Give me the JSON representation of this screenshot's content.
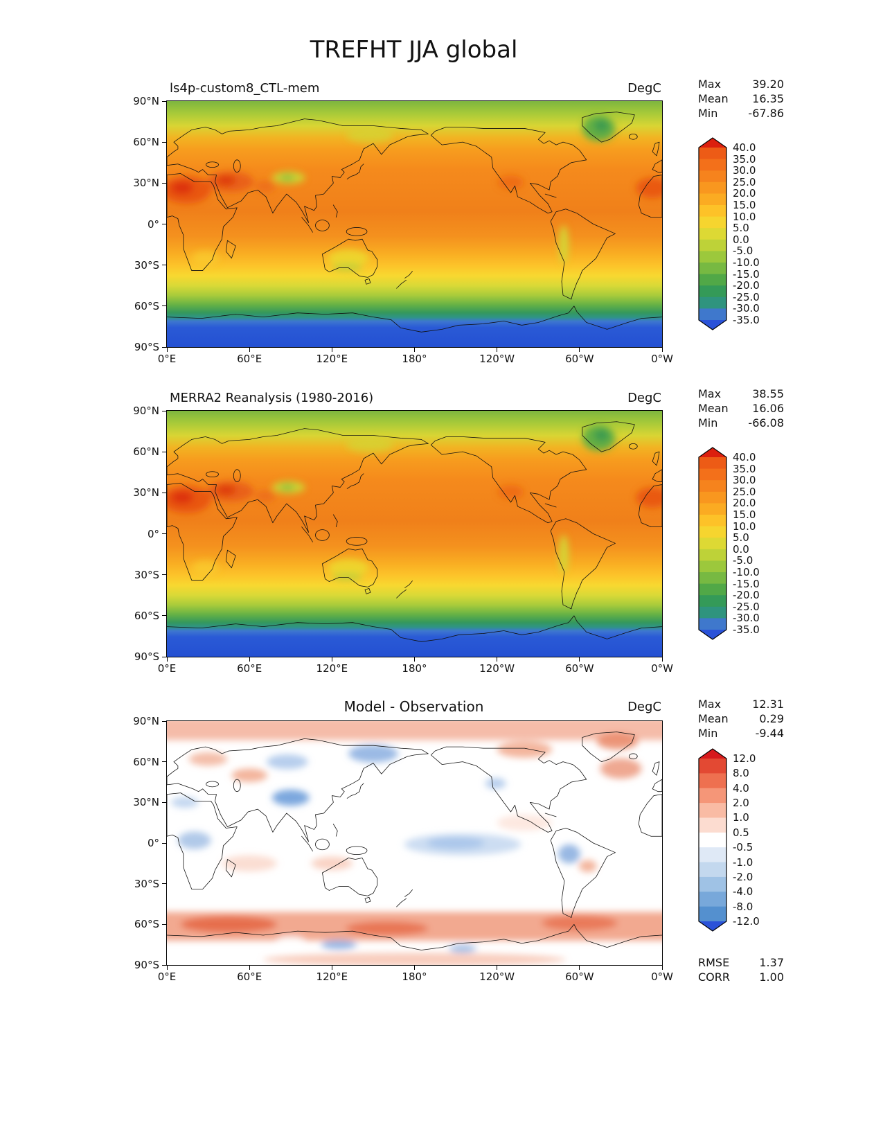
{
  "figure": {
    "title": "TREFHT JJA global"
  },
  "axis": {
    "yticks": [
      "90°N",
      "60°N",
      "30°N",
      "0°",
      "30°S",
      "60°S",
      "90°S"
    ],
    "xticks": [
      "0°E",
      "60°E",
      "120°E",
      "180°",
      "120°W",
      "60°W",
      "0°W"
    ]
  },
  "panels": [
    {
      "title": "ls4p-custom8_CTL-mem",
      "units": "DegC",
      "stats": [
        {
          "label": "Max",
          "value": "39.20"
        },
        {
          "label": "Mean",
          "value": "16.35"
        },
        {
          "label": "Min",
          "value": "-67.86"
        }
      ],
      "colorbar": {
        "ticks": [
          "40.0",
          "35.0",
          "30.0",
          "25.0",
          "20.0",
          "15.0",
          "10.0",
          "5.0",
          "0.0",
          "-5.0",
          "-10.0",
          "-15.0",
          "-20.0",
          "-25.0",
          "-30.0",
          "-35.0"
        ],
        "segment_colors": [
          "#ed5b16",
          "#f3701a",
          "#f6831d",
          "#f9971f",
          "#fbab22",
          "#fdc228",
          "#f6d52f",
          "#ddd934",
          "#bed238",
          "#9cc83c",
          "#77b942",
          "#51a847",
          "#349a58",
          "#2f947e",
          "#3f78cc"
        ],
        "arrow_top": "#dc1f0e",
        "arrow_bottom": "#2a52d8"
      }
    },
    {
      "title": "MERRA2 Reanalysis (1980-2016)",
      "units": "DegC",
      "stats": [
        {
          "label": "Max",
          "value": "38.55"
        },
        {
          "label": "Mean",
          "value": "16.06"
        },
        {
          "label": "Min",
          "value": "-66.08"
        }
      ],
      "colorbar": {
        "ticks": [
          "40.0",
          "35.0",
          "30.0",
          "25.0",
          "20.0",
          "15.0",
          "10.0",
          "5.0",
          "0.0",
          "-5.0",
          "-10.0",
          "-15.0",
          "-20.0",
          "-25.0",
          "-30.0",
          "-35.0"
        ],
        "segment_colors": [
          "#ed5b16",
          "#f3701a",
          "#f6831d",
          "#f9971f",
          "#fbab22",
          "#fdc228",
          "#f6d52f",
          "#ddd934",
          "#bed238",
          "#9cc83c",
          "#77b942",
          "#51a847",
          "#349a58",
          "#2f947e",
          "#3f78cc"
        ],
        "arrow_top": "#dc1f0e",
        "arrow_bottom": "#2a52d8"
      }
    },
    {
      "title": "Model - Observation",
      "units": "DegC",
      "stats": [
        {
          "label": "Max",
          "value": "12.31"
        },
        {
          "label": "Mean",
          "value": "0.29"
        },
        {
          "label": "Min",
          "value": "-9.44"
        }
      ],
      "extra_stats": [
        {
          "label": "RMSE",
          "value": "1.37"
        },
        {
          "label": "CORR",
          "value": "1.00"
        }
      ],
      "colorbar": {
        "ticks": [
          "12.0",
          "8.0",
          "4.0",
          "2.0",
          "1.0",
          "0.5",
          "-0.5",
          "-1.0",
          "-2.0",
          "-4.0",
          "-8.0",
          "-12.0"
        ],
        "segment_colors": [
          "#e34933",
          "#ee7050",
          "#f59678",
          "#f9bba4",
          "#fcdcd0",
          "#ffffff",
          "#dfe9f6",
          "#c3d8ee",
          "#9fc2e5",
          "#78a8da",
          "#5490cf"
        ],
        "arrow_top": "#d7191c",
        "arrow_bottom": "#2a52d8"
      }
    }
  ],
  "chart_data": [
    {
      "type": "heatmap",
      "panel": "top",
      "title": "ls4p-custom8_CTL-mem",
      "units": "DegC",
      "x_axis": {
        "tick_labels": [
          "0°E",
          "60°E",
          "120°E",
          "180°",
          "120°W",
          "60°W",
          "0°W"
        ],
        "range_deg": [
          0,
          360
        ]
      },
      "y_axis": {
        "tick_labels": [
          "90°N",
          "60°N",
          "30°N",
          "0°",
          "30°S",
          "60°S",
          "90°S"
        ],
        "range_deg": [
          90,
          -90
        ]
      },
      "contour_levels": [
        -35,
        -30,
        -25,
        -20,
        -15,
        -10,
        -5,
        0,
        5,
        10,
        15,
        20,
        25,
        30,
        35,
        40
      ],
      "stats": {
        "max": 39.2,
        "mean": 16.35,
        "min": -67.86
      },
      "zonal_mean_estimate_degC": {
        "lat": [
          90,
          75,
          60,
          45,
          30,
          15,
          0,
          -15,
          -30,
          -45,
          -60,
          -75,
          -90
        ],
        "value": [
          2,
          8,
          15,
          21,
          27,
          28,
          27,
          24,
          17,
          8,
          -2,
          -30,
          -45
        ]
      },
      "notable_features": [
        "hot (>35) Sahara, Arabia, South Asia",
        "cool green Tibetan Plateau and Greenland",
        "blue (<-35) Antarctica"
      ]
    },
    {
      "type": "heatmap",
      "panel": "middle",
      "title": "MERRA2 Reanalysis (1980-2016)",
      "units": "DegC",
      "x_axis": {
        "tick_labels": [
          "0°E",
          "60°E",
          "120°E",
          "180°",
          "120°W",
          "60°W",
          "0°W"
        ],
        "range_deg": [
          0,
          360
        ]
      },
      "y_axis": {
        "tick_labels": [
          "90°N",
          "60°N",
          "30°N",
          "0°",
          "30°S",
          "60°S",
          "90°S"
        ],
        "range_deg": [
          90,
          -90
        ]
      },
      "contour_levels": [
        -35,
        -30,
        -25,
        -20,
        -15,
        -10,
        -5,
        0,
        5,
        10,
        15,
        20,
        25,
        30,
        35,
        40
      ],
      "stats": {
        "max": 38.55,
        "mean": 16.06,
        "min": -66.08
      },
      "zonal_mean_estimate_degC": {
        "lat": [
          90,
          75,
          60,
          45,
          30,
          15,
          0,
          -15,
          -30,
          -45,
          -60,
          -75,
          -90
        ],
        "value": [
          1,
          7,
          14,
          20,
          26,
          28,
          27,
          24,
          17,
          8,
          -2,
          -30,
          -44
        ]
      }
    },
    {
      "type": "heatmap",
      "panel": "bottom",
      "title": "Model - Observation",
      "units": "DegC",
      "x_axis": {
        "tick_labels": [
          "0°E",
          "60°E",
          "120°E",
          "180°",
          "120°W",
          "60°W",
          "0°W"
        ],
        "range_deg": [
          0,
          360
        ]
      },
      "y_axis": {
        "tick_labels": [
          "90°N",
          "60°N",
          "30°N",
          "0°",
          "30°S",
          "60°S",
          "90°S"
        ],
        "range_deg": [
          90,
          -90
        ]
      },
      "contour_levels": [
        -12,
        -8,
        -4,
        -2,
        -1,
        -0.5,
        0.5,
        1,
        2,
        4,
        8,
        12
      ],
      "stats": {
        "max": 12.31,
        "mean": 0.29,
        "min": -9.44,
        "rmse": 1.37,
        "corr": 1.0
      },
      "notable_features": [
        "warm bias band over Southern Ocean 50S-70S",
        "cool bias over Tibetan Plateau, NE Siberia and equatorial Pacific",
        "near-zero difference over most tropical oceans"
      ]
    }
  ]
}
